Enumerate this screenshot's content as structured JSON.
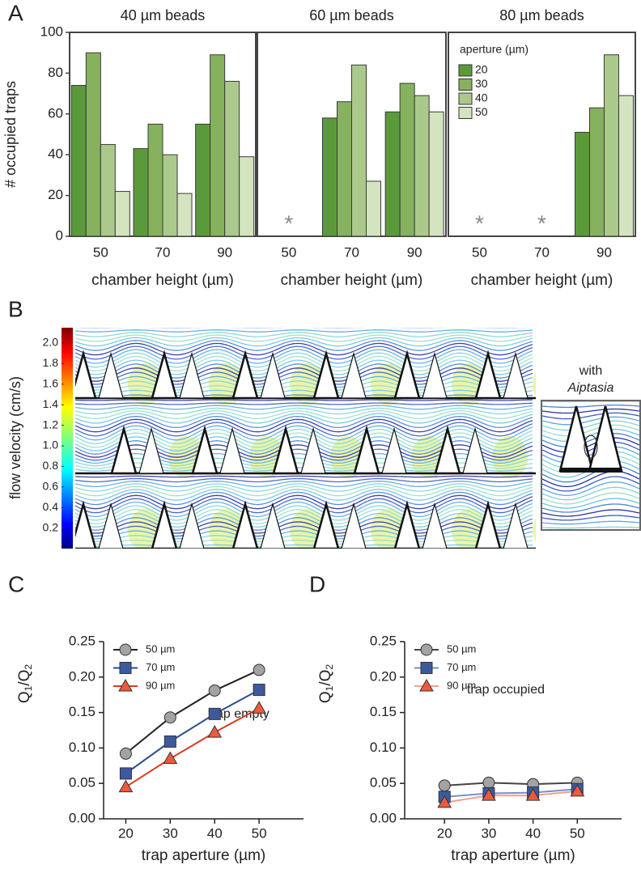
{
  "chart_data": [
    {
      "type": "bar",
      "panel_label": "A",
      "title": "40 µm beads",
      "ylabel": "# occupied traps",
      "xlabel": "chamber height (µm)",
      "categories": [
        "50",
        "70",
        "90"
      ],
      "series": [
        {
          "color": "#5b9a3a",
          "values": [
            74,
            43,
            55
          ]
        },
        {
          "color": "#86b25e",
          "values": [
            90,
            55,
            89
          ]
        },
        {
          "color": "#aac98b",
          "values": [
            45,
            40,
            76
          ]
        },
        {
          "color": "#d4e4bf",
          "values": [
            22,
            21,
            39
          ]
        }
      ],
      "ylim": [
        0,
        100
      ],
      "yticks": [
        0,
        20,
        40,
        60,
        80,
        100
      ]
    },
    {
      "type": "bar",
      "title": "60 µm beads",
      "xlabel": "chamber height (µm)",
      "missing_label": "*",
      "categories": [
        "50",
        "70",
        "90"
      ],
      "series": [
        {
          "color": "#5b9a3a",
          "values": [
            null,
            58,
            61
          ]
        },
        {
          "color": "#86b25e",
          "values": [
            null,
            66,
            75
          ]
        },
        {
          "color": "#aac98b",
          "values": [
            null,
            84,
            69
          ]
        },
        {
          "color": "#d4e4bf",
          "values": [
            null,
            27,
            61
          ]
        }
      ],
      "ylim": [
        0,
        100
      ]
    },
    {
      "type": "bar",
      "title": "80 µm beads",
      "xlabel": "chamber height (µm)",
      "missing_label": "*",
      "legend_title": "aperture (µm)",
      "legend": "upper left",
      "categories": [
        "50",
        "70",
        "90"
      ],
      "series": [
        {
          "name": "20",
          "color": "#5b9a3a",
          "values": [
            null,
            null,
            51
          ]
        },
        {
          "name": "30",
          "color": "#86b25e",
          "values": [
            null,
            null,
            63
          ]
        },
        {
          "name": "40",
          "color": "#aac98b",
          "values": [
            null,
            null,
            89
          ]
        },
        {
          "name": "50",
          "color": "#d4e4bf",
          "values": [
            null,
            null,
            69
          ]
        }
      ],
      "ylim": [
        0,
        100
      ]
    },
    {
      "type": "colorbar",
      "panel_label": "B",
      "ylabel": "flow velocity (cm/s)",
      "colormap": "jet",
      "ylim": [
        0,
        2.15
      ],
      "yticks": [
        0.2,
        0.4,
        0.6,
        0.8,
        {
          "value": 1,
          "label": "1.0"
        },
        1.2,
        1.4,
        1.6,
        1.8,
        {
          "value": 2,
          "label": "2.0"
        }
      ],
      "inset_label": [
        "with",
        "Aiptasia"
      ]
    },
    {
      "type": "line",
      "panel_label": "C",
      "annotation": "trap empty",
      "xlabel": "trap aperture (µm)",
      "ylabel": [
        "Q",
        "1",
        "/Q",
        "2"
      ],
      "x": [
        20,
        30,
        40,
        50
      ],
      "xlim": [
        15,
        60
      ],
      "xticks": [
        20,
        30,
        40,
        50
      ],
      "ylim": [
        0,
        0.25
      ],
      "yticks": [
        {
          "value": 0,
          "label": "0.00"
        },
        0.05,
        {
          "value": 0.1,
          "label": "0.10"
        },
        0.15,
        {
          "value": 0.2,
          "label": "0.20"
        },
        0.25
      ],
      "series": [
        {
          "name": "50 µm",
          "marker": "circle",
          "color": "#a3a3a3",
          "line_color": "#222222",
          "values": [
            0.092,
            0.143,
            0.181,
            0.21
          ]
        },
        {
          "name": "70 µm",
          "marker": "square",
          "color": "#3d5a9e",
          "line_color": "#2c4d8e",
          "values": [
            0.064,
            0.109,
            0.148,
            0.182
          ]
        },
        {
          "name": "90 µm",
          "marker": "triangle",
          "color": "#ee5a3c",
          "line_color": "#d93a1f",
          "values": [
            0.045,
            0.085,
            0.122,
            0.156
          ]
        }
      ]
    },
    {
      "type": "line",
      "panel_label": "D",
      "annotation": "trap occupied",
      "xlabel": "trap aperture (µm)",
      "ylabel": [
        "Q",
        "1",
        "/Q",
        "2"
      ],
      "x": [
        20,
        30,
        40,
        50
      ],
      "xlim": [
        11,
        60
      ],
      "xticks": [
        20,
        30,
        40,
        50
      ],
      "ylim": [
        0,
        0.25
      ],
      "yticks": [
        {
          "value": 0,
          "label": "0.00"
        },
        0.05,
        {
          "value": 0.1,
          "label": "0.10"
        },
        0.15,
        {
          "value": 0.2,
          "label": "0.20"
        },
        0.25
      ],
      "series": [
        {
          "name": "50 µm",
          "marker": "circle",
          "color": "#a3a3a3",
          "line_color": "#444444",
          "values": [
            0.047,
            0.051,
            0.049,
            0.051
          ]
        },
        {
          "name": "70 µm",
          "marker": "square",
          "color": "#3d5a9e",
          "line_color": "#7a8fc8",
          "values": [
            0.031,
            0.036,
            0.037,
            0.042
          ]
        },
        {
          "name": "90 µm",
          "marker": "triangle",
          "color": "#ee5a3c",
          "line_color": "#f3a08f",
          "values": [
            0.023,
            0.033,
            0.033,
            0.039
          ]
        }
      ]
    }
  ]
}
